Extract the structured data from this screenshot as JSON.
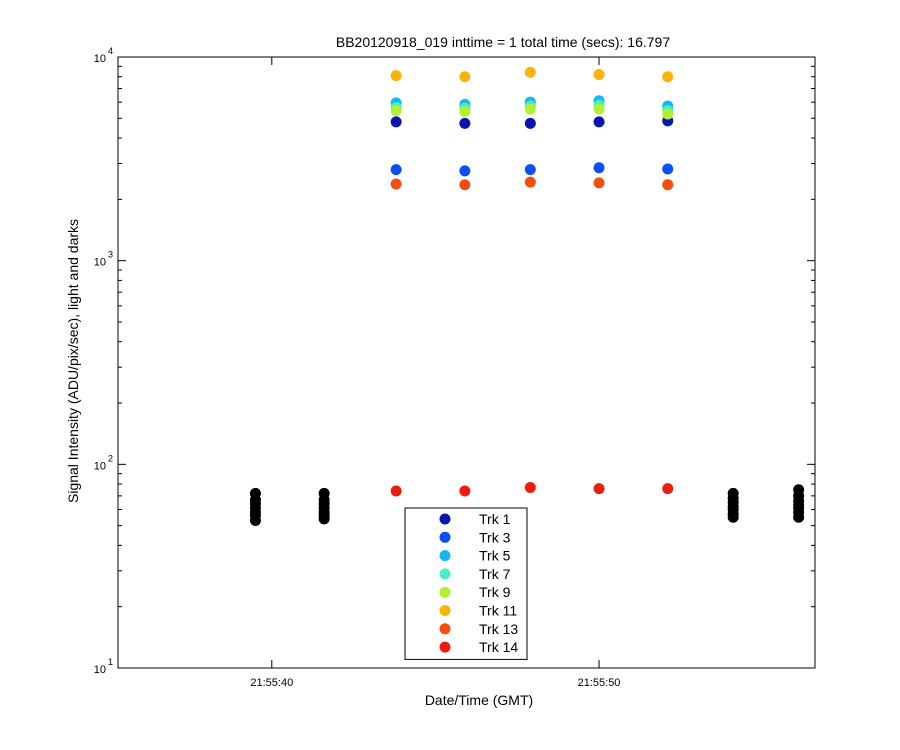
{
  "chart_data": {
    "type": "scatter",
    "title": "BB20120918_019 inttime = 1 total time (secs): 16.797",
    "xlabel": "Date/Time (GMT)",
    "ylabel": "Signal Intensity (ADU/pix/sec), light and darks",
    "yscale": "log",
    "ylim": [
      10,
      10000
    ],
    "xlim": [
      "21:55:35.3",
      "21:55:56.6"
    ],
    "x_ticks": [
      "21:55:40",
      "21:55:50"
    ],
    "y_ticks": [
      {
        "value": 10,
        "base": "10",
        "exp": "1"
      },
      {
        "value": 100,
        "base": "10",
        "exp": "2"
      },
      {
        "value": 1000,
        "base": "10",
        "exp": "3"
      },
      {
        "value": 10000,
        "base": "10",
        "exp": "4"
      }
    ],
    "legend_position": "bottom-center",
    "series": [
      {
        "name": "Trk 1",
        "color": "#0a15b0",
        "points": [
          [
            "21:55:43.8",
            4800
          ],
          [
            "21:55:45.9",
            4720
          ],
          [
            "21:55:47.9",
            4720
          ],
          [
            "21:55:50.0",
            4800
          ],
          [
            "21:55:52.1",
            4860
          ]
        ]
      },
      {
        "name": "Trk 3",
        "color": "#0b4ef5",
        "points": [
          [
            "21:55:43.8",
            2800
          ],
          [
            "21:55:45.9",
            2760
          ],
          [
            "21:55:47.9",
            2800
          ],
          [
            "21:55:50.0",
            2860
          ],
          [
            "21:55:52.1",
            2820
          ]
        ]
      },
      {
        "name": "Trk 5",
        "color": "#16b6f0",
        "points": [
          [
            "21:55:43.8",
            5950
          ],
          [
            "21:55:45.9",
            5850
          ],
          [
            "21:55:47.9",
            6000
          ],
          [
            "21:55:50.0",
            6100
          ],
          [
            "21:55:52.1",
            5750
          ]
        ]
      },
      {
        "name": "Trk 7",
        "color": "#46f0c0",
        "points": [
          [
            "21:55:43.8",
            5650
          ],
          [
            "21:55:45.9",
            5600
          ],
          [
            "21:55:47.9",
            5750
          ],
          [
            "21:55:50.0",
            5800
          ],
          [
            "21:55:52.1",
            5450
          ]
        ]
      },
      {
        "name": "Trk 9",
        "color": "#b2f035",
        "points": [
          [
            "21:55:43.8",
            5450
          ],
          [
            "21:55:45.9",
            5400
          ],
          [
            "21:55:47.9",
            5550
          ],
          [
            "21:55:50.0",
            5550
          ],
          [
            "21:55:52.1",
            5250
          ]
        ]
      },
      {
        "name": "Trk 11",
        "color": "#fbb30a",
        "points": [
          [
            "21:55:43.8",
            8100
          ],
          [
            "21:55:45.9",
            8000
          ],
          [
            "21:55:47.9",
            8400
          ],
          [
            "21:55:50.0",
            8200
          ],
          [
            "21:55:52.1",
            8000
          ]
        ]
      },
      {
        "name": "Trk 13",
        "color": "#f64d0c",
        "points": [
          [
            "21:55:43.8",
            2380
          ],
          [
            "21:55:45.9",
            2360
          ],
          [
            "21:55:47.9",
            2430
          ],
          [
            "21:55:50.0",
            2410
          ],
          [
            "21:55:52.1",
            2360
          ]
        ]
      },
      {
        "name": "Trk 14",
        "color": "#ee1c0e",
        "points": [
          [
            "21:55:43.8",
            74
          ],
          [
            "21:55:45.9",
            74
          ],
          [
            "21:55:47.9",
            77
          ],
          [
            "21:55:50.0",
            76
          ],
          [
            "21:55:52.1",
            76
          ]
        ]
      },
      {
        "color": "#000000",
        "points": [
          [
            "21:55:39.5",
            72
          ],
          [
            "21:55:39.5",
            67
          ],
          [
            "21:55:39.5",
            64
          ],
          [
            "21:55:39.5",
            61
          ],
          [
            "21:55:39.5",
            58
          ],
          [
            "21:55:39.5",
            56
          ],
          [
            "21:55:39.5",
            53
          ],
          [
            "21:55:41.6",
            72
          ],
          [
            "21:55:41.6",
            67
          ],
          [
            "21:55:41.6",
            64
          ],
          [
            "21:55:41.6",
            61
          ],
          [
            "21:55:41.6",
            58
          ],
          [
            "21:55:41.6",
            56
          ],
          [
            "21:55:41.6",
            54
          ],
          [
            "21:55:54.1",
            72
          ],
          [
            "21:55:54.1",
            68
          ],
          [
            "21:55:54.1",
            65
          ],
          [
            "21:55:54.1",
            62
          ],
          [
            "21:55:54.1",
            60
          ],
          [
            "21:55:54.1",
            57
          ],
          [
            "21:55:54.1",
            55
          ],
          [
            "21:55:56.1",
            75
          ],
          [
            "21:55:56.1",
            70
          ],
          [
            "21:55:56.1",
            66
          ],
          [
            "21:55:56.1",
            63
          ],
          [
            "21:55:56.1",
            61
          ],
          [
            "21:55:56.1",
            58
          ],
          [
            "21:55:56.1",
            55
          ]
        ]
      }
    ]
  }
}
